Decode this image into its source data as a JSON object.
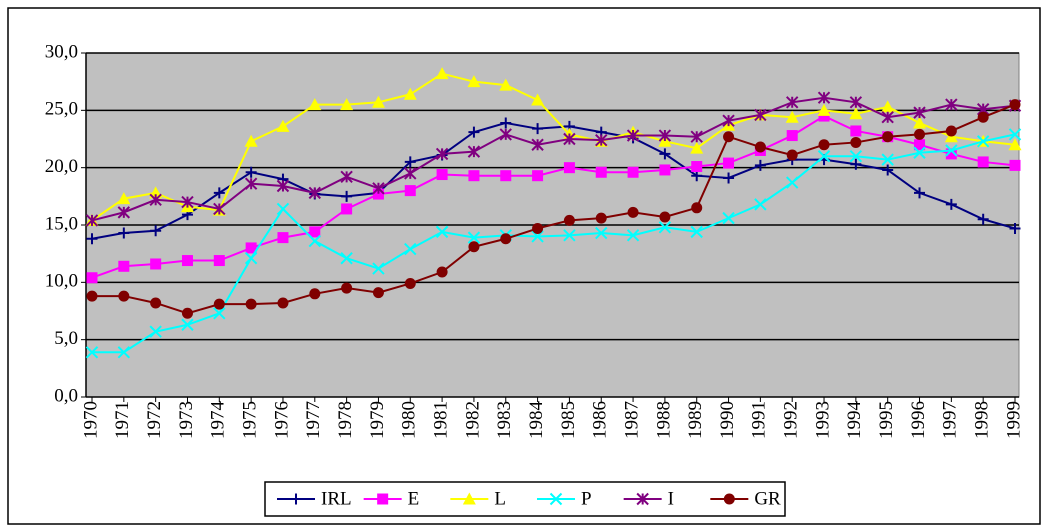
{
  "chart_data": {
    "type": "line",
    "categories": [
      "1970",
      "1971",
      "1972",
      "1973",
      "1974",
      "1975",
      "1976",
      "1977",
      "1978",
      "1979",
      "1980",
      "1981",
      "1982",
      "1983",
      "1984",
      "1985",
      "1986",
      "1987",
      "1988",
      "1989",
      "1990",
      "1991",
      "1992",
      "1993",
      "1994",
      "1995",
      "1996",
      "1997",
      "1998",
      "1999"
    ],
    "ylim": [
      0,
      30
    ],
    "yticks": [
      {
        "value": 0,
        "label": "0,0"
      },
      {
        "value": 5,
        "label": "5,0"
      },
      {
        "value": 10,
        "label": "10,0"
      },
      {
        "value": 15,
        "label": "15,0"
      },
      {
        "value": 20,
        "label": "20,0"
      },
      {
        "value": 25,
        "label": "25,0"
      },
      {
        "value": 30,
        "label": "30,0"
      }
    ],
    "grid": true,
    "plot_background": "#c0c0c0",
    "legend": "bottom",
    "series": [
      {
        "name": "IRL",
        "color": "#000080",
        "marker": "plus",
        "values": [
          13.8,
          14.3,
          14.5,
          15.9,
          17.8,
          19.6,
          19.0,
          17.7,
          17.5,
          17.8,
          20.5,
          21.1,
          23.1,
          23.9,
          23.4,
          23.6,
          23.1,
          22.6,
          21.2,
          19.3,
          19.1,
          20.2,
          20.7,
          20.7,
          20.3,
          19.8,
          17.8,
          16.8,
          15.5,
          14.7
        ]
      },
      {
        "name": "E",
        "color": "#ff00ff",
        "marker": "square",
        "values": [
          10.4,
          11.4,
          11.6,
          11.9,
          11.9,
          13.0,
          13.9,
          14.4,
          16.4,
          17.7,
          18.0,
          19.4,
          19.3,
          19.3,
          19.3,
          20.0,
          19.6,
          19.6,
          19.8,
          20.1,
          20.4,
          21.5,
          22.8,
          24.5,
          23.2,
          22.7,
          22.0,
          21.2,
          20.5,
          20.2
        ]
      },
      {
        "name": "L",
        "color": "#ffff00",
        "marker": "triangle",
        "values": [
          15.4,
          17.3,
          17.8,
          16.6,
          16.3,
          22.3,
          23.6,
          25.5,
          25.5,
          25.7,
          26.4,
          28.2,
          27.5,
          27.2,
          25.9,
          22.9,
          22.3,
          23.1,
          22.3,
          21.7,
          23.7,
          24.6,
          24.4,
          25.0,
          24.7,
          25.3,
          23.9,
          22.7,
          22.3,
          22.0
        ]
      },
      {
        "name": "P",
        "color": "#00ffff",
        "marker": "x",
        "values": [
          3.9,
          3.9,
          5.7,
          6.3,
          7.3,
          12.1,
          16.4,
          13.6,
          12.1,
          11.2,
          12.9,
          14.4,
          13.9,
          14.1,
          14.0,
          14.1,
          14.3,
          14.1,
          14.8,
          14.4,
          15.6,
          16.8,
          18.7,
          21.0,
          21.0,
          20.7,
          21.3,
          21.5,
          22.3,
          22.9
        ]
      },
      {
        "name": "I",
        "color": "#800080",
        "marker": "star",
        "values": [
          15.4,
          16.1,
          17.2,
          17.0,
          16.4,
          18.6,
          18.4,
          17.8,
          19.2,
          18.2,
          19.5,
          21.2,
          21.4,
          22.9,
          22.0,
          22.5,
          22.4,
          22.8,
          22.8,
          22.7,
          24.1,
          24.6,
          25.7,
          26.1,
          25.7,
          24.4,
          24.8,
          25.5,
          25.1,
          25.4
        ]
      },
      {
        "name": "GR",
        "color": "#800000",
        "marker": "circle",
        "values": [
          8.8,
          8.8,
          8.2,
          7.3,
          8.1,
          8.1,
          8.2,
          9.0,
          9.5,
          9.1,
          9.9,
          10.9,
          13.1,
          13.8,
          14.7,
          15.4,
          15.6,
          16.1,
          15.7,
          16.5,
          22.7,
          21.8,
          21.1,
          22.0,
          22.2,
          22.7,
          22.9,
          23.2,
          24.4,
          25.5
        ]
      }
    ]
  }
}
